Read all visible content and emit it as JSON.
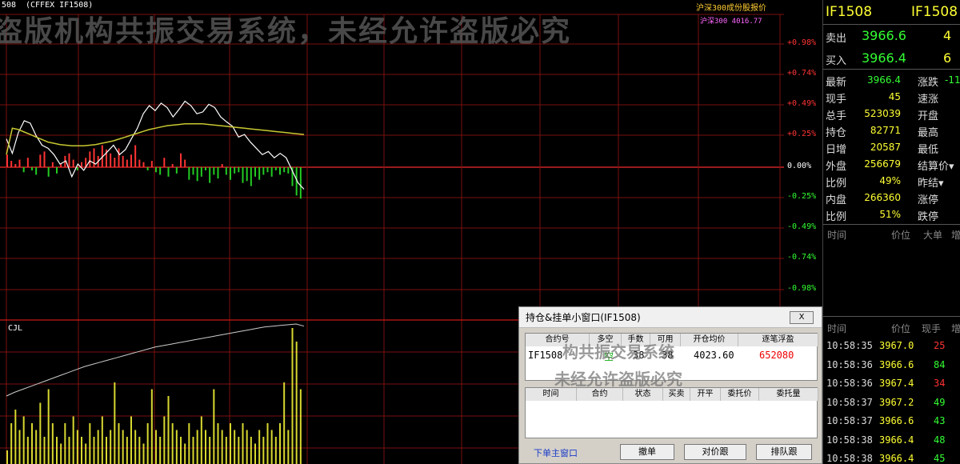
{
  "watermark": "盗版机构共振交易系统，未经允许盗版必究",
  "watermark_short_1": "构共振交易系统",
  "watermark_short_2": "未经允许盗版必究",
  "chart_header": {
    "left_code": "508",
    "contract": "(CFFEX IF1508)",
    "index_name": "沪深300成份股报价",
    "index_line": "沪深300 4016.77",
    "vol_label": "CJL"
  },
  "pct_axis": [
    {
      "label": "+0.98%",
      "color": "#ff3333"
    },
    {
      "label": "+0.74%",
      "color": "#ff3333"
    },
    {
      "label": "+0.49%",
      "color": "#ff3333"
    },
    {
      "label": "+0.25%",
      "color": "#ff3333"
    },
    {
      "label": "0.00%",
      "color": "#ffffff"
    },
    {
      "label": "-0.25%",
      "color": "#33ff33"
    },
    {
      "label": "-0.49%",
      "color": "#33ff33"
    },
    {
      "label": "-0.74%",
      "color": "#33ff33"
    },
    {
      "label": "-0.98%",
      "color": "#33ff33"
    }
  ],
  "quote": {
    "code": "IF1508",
    "code2": "IF1508",
    "sell_label": "卖出",
    "sell_price": "3966.6",
    "sell_qty": "4",
    "buy_label": "买入",
    "buy_price": "3966.4",
    "buy_qty": "6",
    "rows": [
      {
        "k1": "最新",
        "v1": "3966.4",
        "c1": "#33ff33",
        "k2": "涨跌",
        "v2": "-11"
      },
      {
        "k1": "现手",
        "v1": "45",
        "c1": "#ffff33",
        "k2": "速涨",
        "v2": ""
      },
      {
        "k1": "总手",
        "v1": "523039",
        "c1": "#ffff33",
        "k2": "开盘",
        "v2": ""
      },
      {
        "k1": "持仓",
        "v1": "82771",
        "c1": "#ffff33",
        "k2": "最高",
        "v2": ""
      },
      {
        "k1": "日增",
        "v1": "20587",
        "c1": "#ffff33",
        "k2": "最低",
        "v2": ""
      },
      {
        "k1": "外盘",
        "v1": "256679",
        "c1": "#ffff33",
        "k2": "结算价▾",
        "v2": ""
      },
      {
        "k1": "比例",
        "v1": "49%",
        "c1": "#ffff33",
        "k2": "昨结▾",
        "v2": ""
      },
      {
        "k1": "内盘",
        "v1": "266360",
        "c1": "#ffff33",
        "k2": "涨停",
        "v2": ""
      },
      {
        "k1": "比例",
        "v1": "51%",
        "c1": "#ffff33",
        "k2": "跌停",
        "v2": ""
      }
    ],
    "hdr1": {
      "time": "时间",
      "price": "价位",
      "big": "大单",
      "inc": "增"
    },
    "hdr2": {
      "time": "时间",
      "price": "价位",
      "qty": "现手",
      "inc": "增"
    },
    "ticks": [
      {
        "time": "10:58:35",
        "price": "3967.0",
        "pc": "#ffff33",
        "qty": "25",
        "qc": "#ff3333"
      },
      {
        "time": "10:58:36",
        "price": "3966.6",
        "pc": "#ffff33",
        "qty": "84",
        "qc": "#33ff33"
      },
      {
        "time": "10:58:36",
        "price": "3967.4",
        "pc": "#ffff33",
        "qty": "34",
        "qc": "#ff3333"
      },
      {
        "time": "10:58:37",
        "price": "3967.2",
        "pc": "#ffff33",
        "qty": "49",
        "qc": "#33ff33"
      },
      {
        "time": "10:58:37",
        "price": "3966.6",
        "pc": "#ffff33",
        "qty": "43",
        "qc": "#33ff33"
      },
      {
        "time": "10:58:38",
        "price": "3966.4",
        "pc": "#ffff33",
        "qty": "48",
        "qc": "#33ff33"
      },
      {
        "time": "10:58:38",
        "price": "3966.4",
        "pc": "#ffff33",
        "qty": "45",
        "qc": "#33ff33"
      }
    ]
  },
  "dialog": {
    "title": "持仓&挂单小窗口(IF1508)",
    "close_label": "X",
    "pos_headers": [
      "合约号",
      "多空",
      "手数",
      "可用",
      "开仓均价",
      "逐笔浮盈"
    ],
    "pos_row": {
      "code": "IF1508",
      "dir": "空",
      "qty": "38",
      "avail": "38",
      "avg": "4023.60",
      "pnl": "652080"
    },
    "order_headers": [
      "时间",
      "合约",
      "状态",
      "买卖",
      "开平",
      "委托价",
      "委托量"
    ],
    "link": "下单主窗口",
    "buttons": [
      "撤单",
      "对价跟",
      "排队跟"
    ]
  },
  "chart_data": {
    "type": "line",
    "title": "(CFFEX IF1508)",
    "y_percent_ticks": [
      "+0.98%",
      "+0.74%",
      "+0.49%",
      "+0.25%",
      "0.00%",
      "-0.25%",
      "-0.49%",
      "-0.74%",
      "-0.98%"
    ],
    "series": [
      {
        "name": "",
        "color": "#ffffff",
        "y": [
          0.45,
          0.22,
          0.55,
          0.74,
          0.7,
          0.5,
          0.35,
          0.3,
          0.2,
          0.05,
          0.1,
          -0.15,
          0.05,
          -0.05,
          0.1,
          0.05,
          0.15,
          0.25,
          0.35,
          0.2,
          0.28,
          0.45,
          0.62,
          0.85,
          0.98,
          0.9,
          1.02,
          0.95,
          0.8,
          0.92,
          1.05,
          0.98,
          0.85,
          0.88,
          1.0,
          0.95,
          0.8,
          0.72,
          0.65,
          0.48,
          0.52,
          0.4,
          0.3,
          0.2,
          0.25,
          0.15,
          0.22,
          0.15,
          -0.05,
          -0.25,
          -0.35
        ]
      },
      {
        "name": "",
        "color": "#c8c832",
        "y": [
          0.2,
          0.62,
          0.6,
          0.56,
          0.52,
          0.48,
          0.44,
          0.4,
          0.38,
          0.36,
          0.35,
          0.34,
          0.34,
          0.34,
          0.35,
          0.36,
          0.38,
          0.4,
          0.42,
          0.45,
          0.48,
          0.51,
          0.54,
          0.57,
          0.6,
          0.62,
          0.64,
          0.66,
          0.67,
          0.68,
          0.69,
          0.69,
          0.69,
          0.69,
          0.68,
          0.67,
          0.66,
          0.65,
          0.64,
          0.63,
          0.62,
          0.61,
          0.6,
          0.59,
          0.58,
          0.57,
          0.56,
          0.55,
          0.54,
          0.53,
          0.52
        ]
      }
    ],
    "bars": [
      0.2,
      0.1,
      0.05,
      0.12,
      -0.08,
      0.15,
      -0.05,
      -0.12,
      0.2,
      0.25,
      -0.15,
      0.08,
      -0.1,
      0.05,
      0.18,
      0.22,
      0.12,
      -0.05,
      0.08,
      0.15,
      0.25,
      0.3,
      0.18,
      0.35,
      0.28,
      0.22,
      0.15,
      0.3,
      0.18,
      0.12,
      0.2,
      0.35,
      0.12,
      0.08,
      -0.05,
      0.1,
      -0.08,
      -0.12,
      0.15,
      -0.15,
      0.05,
      -0.1,
      0.22,
      0.12,
      -0.2,
      -0.12,
      -0.22,
      -0.15,
      -0.05,
      -0.25,
      -0.12,
      -0.18,
      0.05,
      -0.12,
      -0.2,
      -0.1,
      -0.08,
      -0.25,
      -0.22,
      -0.3,
      -0.15,
      -0.2,
      -0.12,
      -0.08,
      -0.15,
      -0.05,
      -0.12,
      -0.08,
      -0.1,
      -0.3,
      -0.45,
      -0.5
    ],
    "volume": [
      0.1,
      0.3,
      0.4,
      0.25,
      0.35,
      0.2,
      0.3,
      0.25,
      0.45,
      0.2,
      0.55,
      0.3,
      0.2,
      0.15,
      0.3,
      0.2,
      0.35,
      0.25,
      0.2,
      0.15,
      0.3,
      0.2,
      0.25,
      0.35,
      0.2,
      0.25,
      0.6,
      0.3,
      0.25,
      0.2,
      0.35,
      0.25,
      0.2,
      0.15,
      0.3,
      0.55,
      0.25,
      0.2,
      0.35,
      0.5,
      0.3,
      0.25,
      0.2,
      0.15,
      0.3,
      0.2,
      0.25,
      0.35,
      0.25,
      0.2,
      0.55,
      0.3,
      0.25,
      0.2,
      0.3,
      0.25,
      0.2,
      0.3,
      0.25,
      0.2,
      0.15,
      0.25,
      0.2,
      0.3,
      0.25,
      0.2,
      0.3,
      0.6,
      0.25,
      1.0,
      0.9,
      0.55
    ],
    "cumulative": [
      0.0,
      0.05,
      0.09,
      0.13,
      0.17,
      0.21,
      0.25,
      0.29,
      0.33,
      0.37,
      0.41,
      0.44,
      0.47,
      0.5,
      0.53,
      0.56,
      0.59,
      0.62,
      0.65,
      0.68,
      0.7,
      0.72,
      0.74,
      0.76,
      0.78,
      0.8,
      0.82,
      0.84,
      0.86,
      0.88,
      0.9,
      0.92,
      0.94,
      0.96,
      0.97,
      0.98,
      0.99,
      1.0,
      0.97
    ]
  }
}
